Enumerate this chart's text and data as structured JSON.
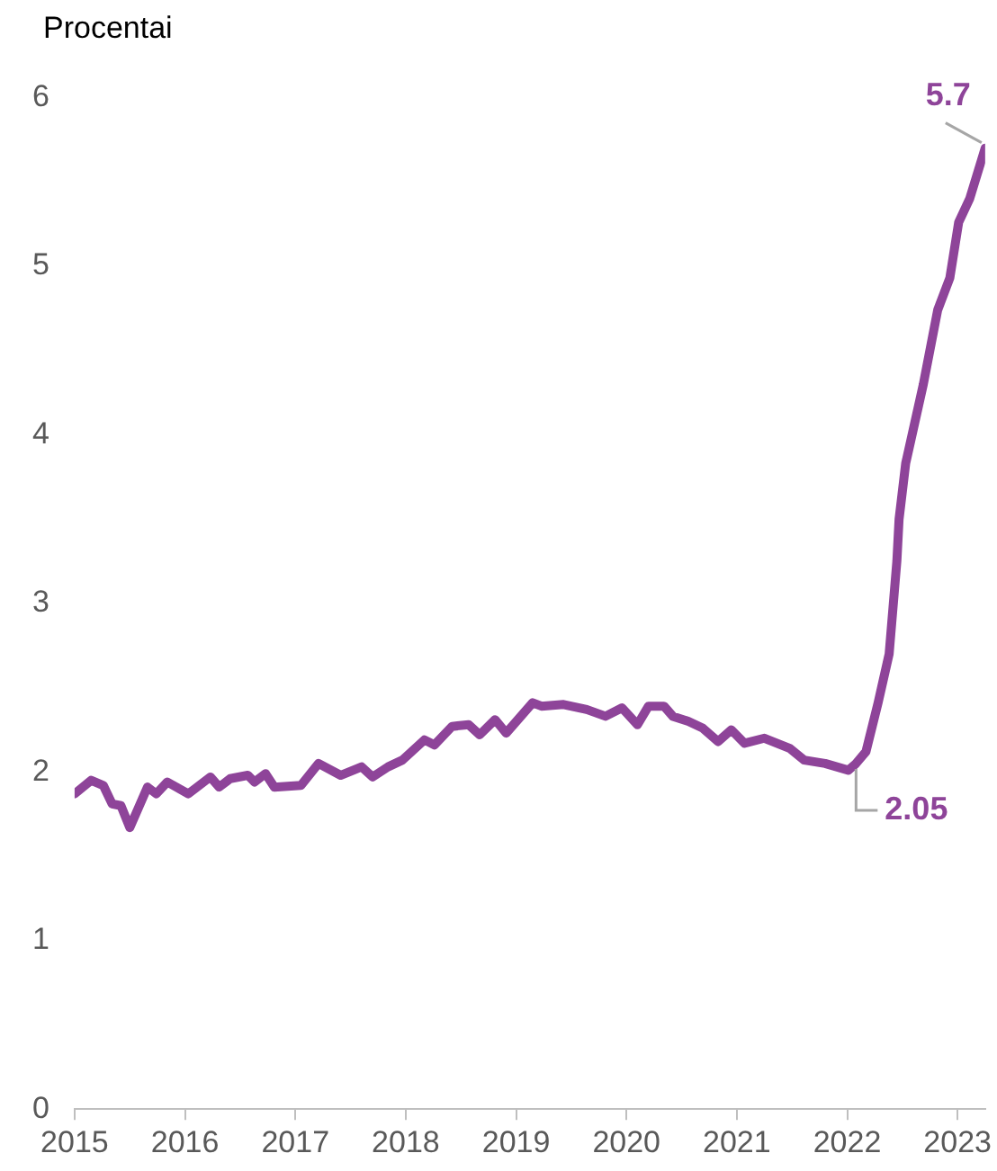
{
  "chart_data": {
    "type": "line",
    "ylabel": "Procentai",
    "xlim": [
      2015,
      2023.25
    ],
    "xticks": [
      2015,
      2016,
      2017,
      2018,
      2019,
      2020,
      2021,
      2022,
      2023
    ],
    "ylim": [
      0,
      6
    ],
    "yticks": [
      0,
      1,
      2,
      3,
      4,
      5,
      6
    ],
    "grid": false,
    "legend": false,
    "marker": "none",
    "line_style": "solid",
    "series": [
      {
        "color": "#8e4499",
        "x": [
          2015.0,
          2015.15,
          2015.26,
          2015.34,
          2015.42,
          2015.5,
          2015.66,
          2015.74,
          2015.84,
          2016.03,
          2016.23,
          2016.31,
          2016.41,
          2016.57,
          2016.63,
          2016.73,
          2016.81,
          2017.05,
          2017.21,
          2017.41,
          2017.6,
          2017.7,
          2017.84,
          2017.97,
          2018.17,
          2018.26,
          2018.42,
          2018.57,
          2018.67,
          2018.81,
          2018.91,
          2019.15,
          2019.23,
          2019.43,
          2019.64,
          2019.81,
          2019.96,
          2020.1,
          2020.2,
          2020.34,
          2020.42,
          2020.56,
          2020.69,
          2020.83,
          2020.95,
          2021.07,
          2021.25,
          2021.48,
          2021.61,
          2021.8,
          2022.01,
          2022.08,
          2022.17,
          2022.28,
          2022.38,
          2022.45,
          2022.47,
          2022.53,
          2022.69,
          2022.82,
          2022.93,
          2023.01,
          2023.11,
          2023.25
        ],
        "values": [
          1.87,
          1.95,
          1.92,
          1.81,
          1.8,
          1.67,
          1.91,
          1.87,
          1.94,
          1.87,
          1.97,
          1.91,
          1.96,
          1.98,
          1.94,
          1.99,
          1.91,
          1.92,
          2.05,
          1.98,
          2.03,
          1.97,
          2.03,
          2.07,
          2.19,
          2.16,
          2.27,
          2.28,
          2.22,
          2.31,
          2.23,
          2.41,
          2.39,
          2.4,
          2.37,
          2.33,
          2.38,
          2.28,
          2.39,
          2.39,
          2.33,
          2.3,
          2.26,
          2.18,
          2.25,
          2.17,
          2.2,
          2.14,
          2.07,
          2.05,
          2.01,
          2.05,
          2.12,
          2.41,
          2.7,
          3.25,
          3.5,
          3.83,
          4.3,
          4.74,
          4.93,
          5.26,
          5.4,
          5.7
        ]
      }
    ],
    "annotations": [
      {
        "text": "5.7",
        "x": 2023.25,
        "y": 5.7
      },
      {
        "text": "2.05",
        "x": 2022.08,
        "y": 2.05
      }
    ]
  }
}
